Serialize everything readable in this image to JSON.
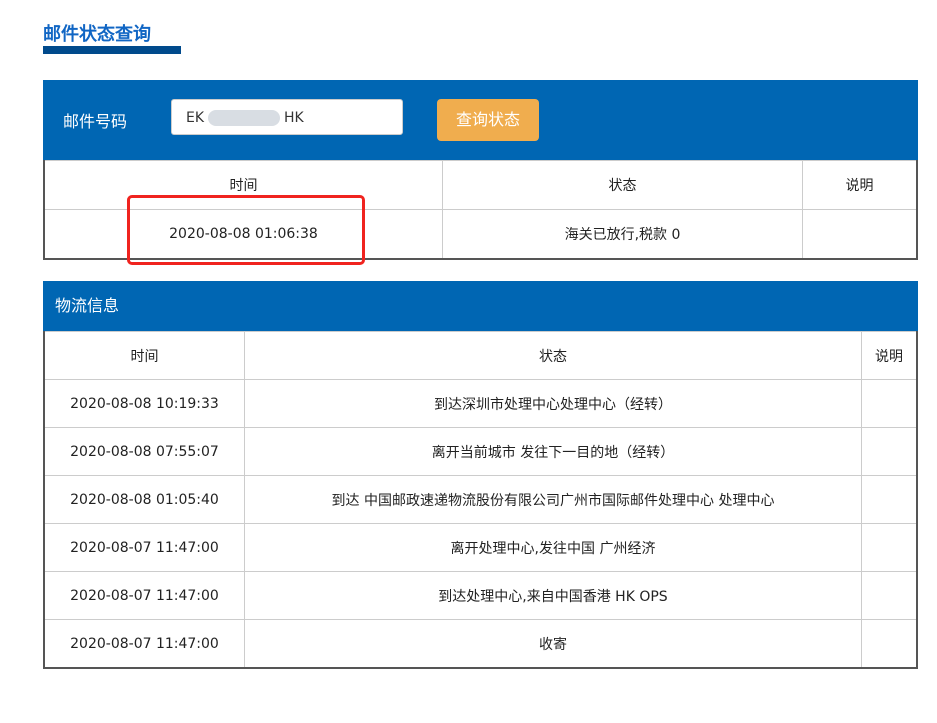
{
  "page_title": "邮件状态查询",
  "query": {
    "label": "邮件号码",
    "value_prefix": "EK",
    "value_suffix": "HK",
    "button": "查询状态"
  },
  "status_table": {
    "headers": [
      "时间",
      "状态",
      "说明"
    ],
    "rows": [
      [
        "2020-08-08 01:06:38",
        "海关已放行,税款 0",
        ""
      ]
    ]
  },
  "logistics": {
    "title": "物流信息",
    "headers": [
      "时间",
      "状态",
      "说明"
    ],
    "rows": [
      [
        "2020-08-08 10:19:33",
        "到达深圳市处理中心处理中心（经转）",
        ""
      ],
      [
        "2020-08-08 07:55:07",
        "离开当前城市 发往下一目的地（经转）",
        ""
      ],
      [
        "2020-08-08 01:05:40",
        "到达 中国邮政速递物流股份有限公司广州市国际邮件处理中心 处理中心",
        ""
      ],
      [
        "2020-08-07 11:47:00",
        "离开处理中心,发往中国 广州经济",
        ""
      ],
      [
        "2020-08-07 11:47:00",
        "到达处理中心,来自中国香港 HK OPS",
        ""
      ],
      [
        "2020-08-07 11:47:00",
        "收寄",
        ""
      ]
    ]
  }
}
